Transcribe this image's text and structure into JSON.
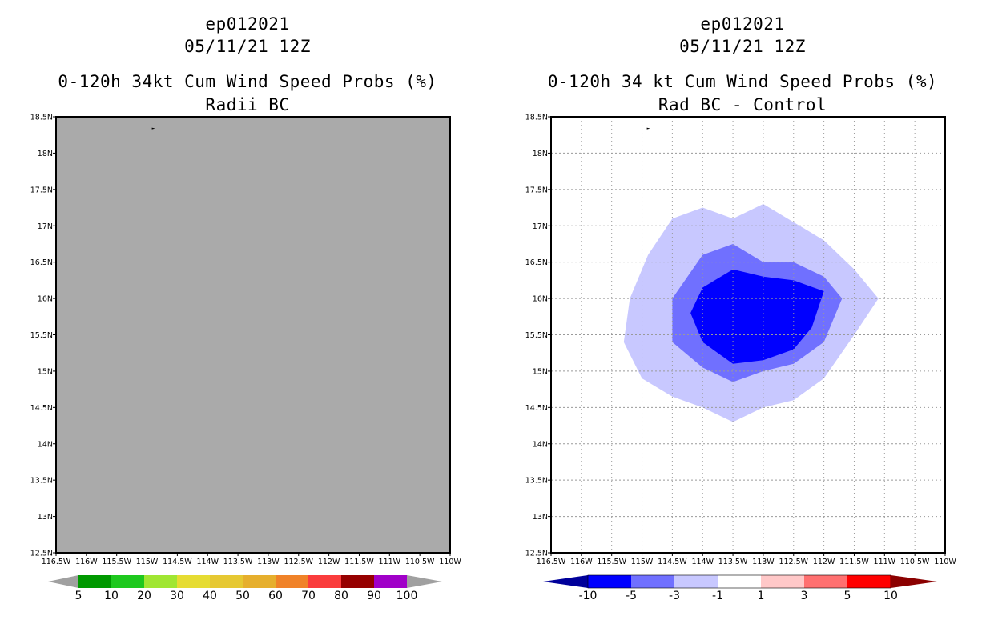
{
  "chart_data": [
    {
      "type": "contour-map",
      "storm_id": "ep012021",
      "date": "05/11/21 12Z",
      "title": "0-120h 34kt Cum Wind Speed Probs (%)",
      "subtitle": "Radii BC",
      "lon_range": [
        -116.5,
        -110
      ],
      "lat_range": [
        12.5,
        18.5
      ],
      "x_ticks": [
        "116.5W",
        "116W",
        "115.5W",
        "115W",
        "114.5W",
        "114W",
        "113.5W",
        "113W",
        "112.5W",
        "112W",
        "111.5W",
        "111W",
        "110.5W",
        "110W"
      ],
      "y_ticks": [
        "12.5N",
        "13N",
        "13.5N",
        "14N",
        "14.5N",
        "15N",
        "15.5N",
        "16N",
        "16.5N",
        "17N",
        "17.5N",
        "18N",
        "18.5N"
      ],
      "background": "#aaaaaa",
      "grid": false,
      "colorbar": {
        "labels": [
          "5",
          "10",
          "20",
          "30",
          "40",
          "50",
          "60",
          "70",
          "80",
          "90",
          "100"
        ],
        "colors": [
          "#009900",
          "#1ec81e",
          "#a0e632",
          "#e6dc32",
          "#e6c832",
          "#e6af2d",
          "#f08228",
          "#fa3c3c",
          "#960000",
          "#a000c8"
        ],
        "end_color": "#a0a0a0"
      },
      "contours": []
    },
    {
      "type": "contour-map",
      "storm_id": "ep012021",
      "date": "05/11/21 12Z",
      "title": "0-120h 34 kt Cum Wind Speed Probs (%)",
      "subtitle": "Rad BC - Control",
      "lon_range": [
        -116.5,
        -110
      ],
      "lat_range": [
        12.5,
        18.5
      ],
      "x_ticks": [
        "116.5W",
        "116W",
        "115.5W",
        "115W",
        "114.5W",
        "114W",
        "113.5W",
        "113W",
        "112.5W",
        "112W",
        "111.5W",
        "111W",
        "110.5W",
        "110W"
      ],
      "y_ticks": [
        "12.5N",
        "13N",
        "13.5N",
        "14N",
        "14.5N",
        "15N",
        "15.5N",
        "16N",
        "16.5N",
        "17N",
        "17.5N",
        "18N",
        "18.5N"
      ],
      "background": "#ffffff",
      "grid": true,
      "colorbar": {
        "labels": [
          "-10",
          "-5",
          "-3",
          "-1",
          "1",
          "3",
          "5",
          "10"
        ],
        "colors": [
          "#0000ff",
          "#7070ff",
          "#c8c8ff",
          "#ffffff",
          "#ffc8c8",
          "#ff7070",
          "#ff0000"
        ],
        "left_end_color": "#00009a",
        "right_end_color": "#8b0000"
      },
      "contours": [
        {
          "level": "-3 to -1",
          "color": "#c8c8ff",
          "points": [
            [
              -114.5,
              17.1
            ],
            [
              -114,
              17.25
            ],
            [
              -113.5,
              17.1
            ],
            [
              -113,
              17.3
            ],
            [
              -112.5,
              17.05
            ],
            [
              -112,
              16.8
            ],
            [
              -111.5,
              16.4
            ],
            [
              -111.1,
              16.0
            ],
            [
              -111.5,
              15.5
            ],
            [
              -112,
              14.9
            ],
            [
              -112.5,
              14.6
            ],
            [
              -113,
              14.5
            ],
            [
              -113.5,
              14.3
            ],
            [
              -114,
              14.5
            ],
            [
              -114.5,
              14.65
            ],
            [
              -115,
              14.9
            ],
            [
              -115.3,
              15.4
            ],
            [
              -115.2,
              16.0
            ],
            [
              -114.9,
              16.6
            ]
          ]
        },
        {
          "level": "-5 to -3",
          "color": "#7070ff",
          "points": [
            [
              -114,
              16.6
            ],
            [
              -113.5,
              16.75
            ],
            [
              -113,
              16.5
            ],
            [
              -112.5,
              16.5
            ],
            [
              -112,
              16.3
            ],
            [
              -111.7,
              16.0
            ],
            [
              -112,
              15.4
            ],
            [
              -112.5,
              15.1
            ],
            [
              -113,
              15.0
            ],
            [
              -113.5,
              14.85
            ],
            [
              -114,
              15.05
            ],
            [
              -114.5,
              15.4
            ],
            [
              -114.5,
              16.0
            ]
          ]
        },
        {
          "level": "-10 to -5",
          "color": "#0000ff",
          "points": [
            [
              -114,
              16.15
            ],
            [
              -113.5,
              16.4
            ],
            [
              -113,
              16.3
            ],
            [
              -112.5,
              16.25
            ],
            [
              -112,
              16.1
            ],
            [
              -112.2,
              15.6
            ],
            [
              -112.5,
              15.3
            ],
            [
              -113,
              15.15
            ],
            [
              -113.5,
              15.1
            ],
            [
              -114,
              15.4
            ],
            [
              -114.2,
              15.8
            ]
          ]
        }
      ]
    }
  ]
}
